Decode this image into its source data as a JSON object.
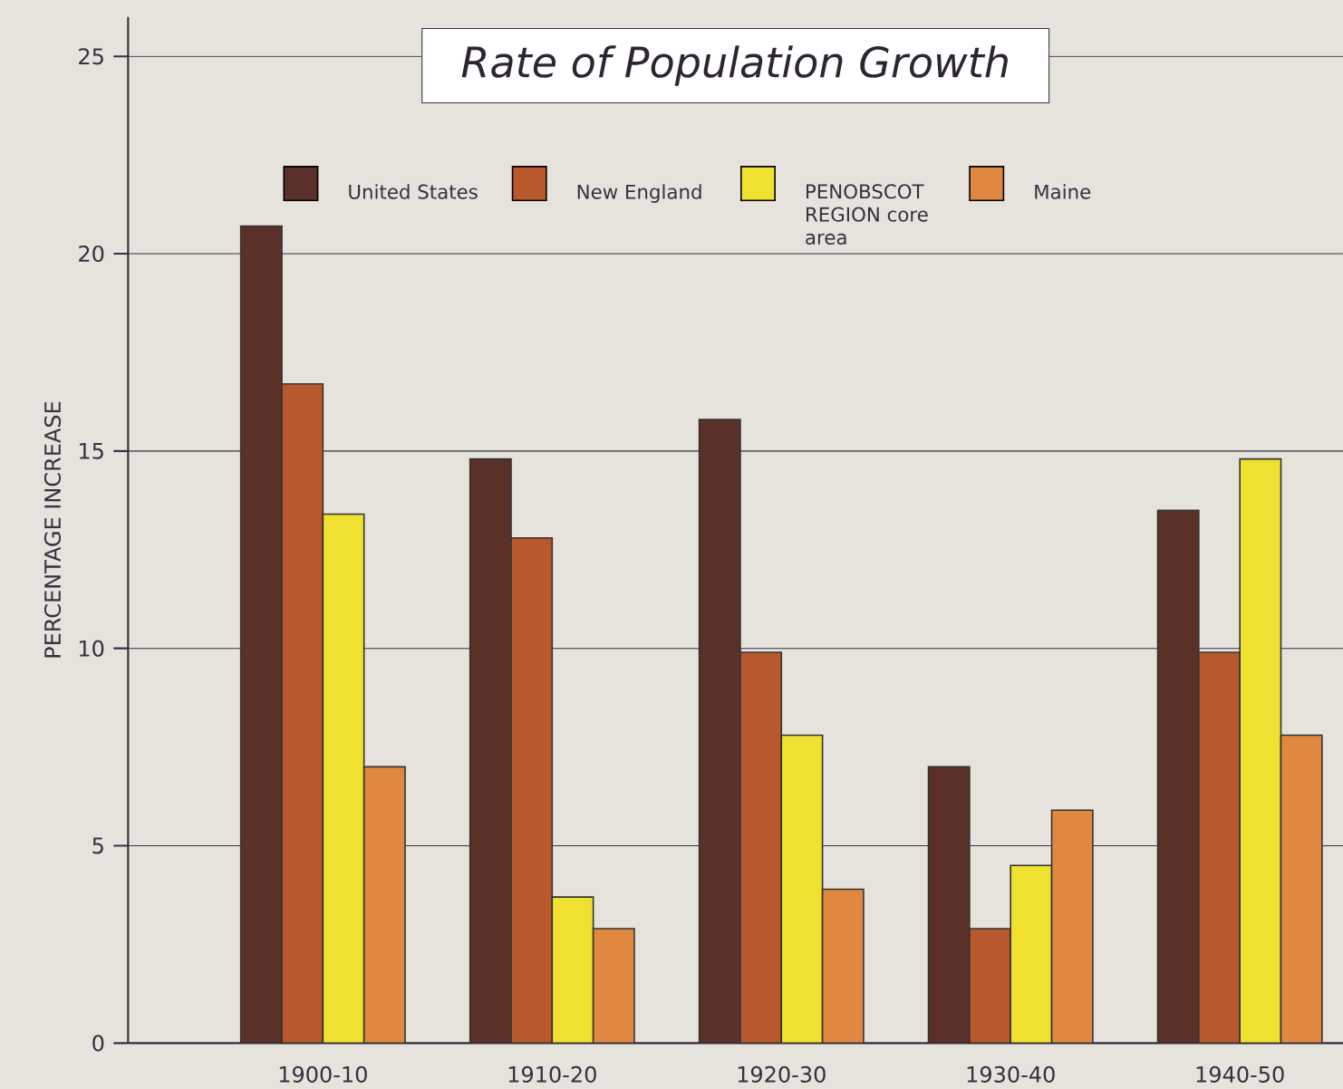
{
  "chart_data": {
    "type": "bar",
    "title": "Rate of Population Growth",
    "ylabel": "PERCENTAGE INCREASE",
    "categories": [
      "1900-10",
      "1910-20",
      "1920-30",
      "1930-40",
      "1940-50"
    ],
    "series": [
      {
        "name": "United States",
        "color": "#5a3028",
        "values": [
          20.7,
          14.8,
          15.8,
          7.0,
          13.5
        ]
      },
      {
        "name": "New England",
        "color": "#b8582c",
        "values": [
          16.7,
          12.8,
          9.9,
          2.9,
          9.9
        ]
      },
      {
        "name": "PENOBSCOT REGION core area",
        "color": "#f0e030",
        "values": [
          13.4,
          3.7,
          7.8,
          4.5,
          14.8
        ]
      },
      {
        "name": "Maine",
        "color": "#e08840",
        "values": [
          7.0,
          2.9,
          3.9,
          5.9,
          7.8
        ]
      }
    ],
    "ylim": [
      0,
      26
    ],
    "yticks": [
      0,
      5,
      10,
      15,
      20,
      25
    ],
    "grid": "y",
    "legend": "top"
  }
}
